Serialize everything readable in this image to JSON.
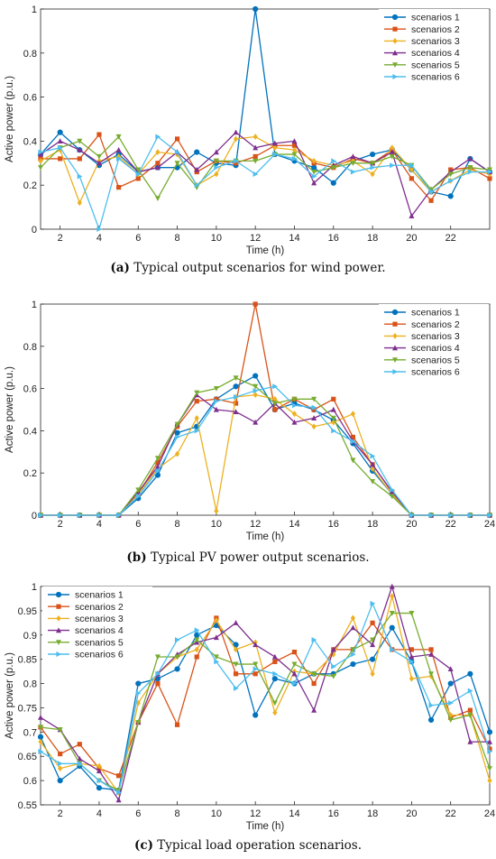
{
  "chart_data": [
    {
      "type": "line",
      "caption_tag": "(a)",
      "caption_text": "Typical output scenarios for wind power.",
      "xlabel": "Time (h)",
      "ylabel": "Active power (p.u.)",
      "xlim": [
        1,
        24
      ],
      "ylim": [
        0,
        1
      ],
      "xticks": [
        2,
        4,
        6,
        8,
        10,
        12,
        14,
        16,
        18,
        20,
        22
      ],
      "yticks": [
        0,
        0.2,
        0.4,
        0.6,
        0.8,
        1
      ],
      "legend_position": "top-right",
      "x": [
        1,
        2,
        3,
        4,
        5,
        6,
        7,
        8,
        9,
        10,
        11,
        12,
        13,
        14,
        15,
        16,
        17,
        18,
        19,
        20,
        21,
        22,
        23,
        24
      ],
      "series": [
        {
          "name": "scenarios 1",
          "color": "#0072BD",
          "marker": "circle",
          "values": [
            0.34,
            0.44,
            0.36,
            0.29,
            0.34,
            0.26,
            0.28,
            0.28,
            0.35,
            0.3,
            0.29,
            1.0,
            0.34,
            0.31,
            0.28,
            0.21,
            0.31,
            0.34,
            0.36,
            0.27,
            0.17,
            0.15,
            0.32,
            0.26
          ]
        },
        {
          "name": "scenarios 2",
          "color": "#D95319",
          "marker": "square",
          "values": [
            0.32,
            0.32,
            0.32,
            0.43,
            0.19,
            0.23,
            0.3,
            0.41,
            0.26,
            0.31,
            0.3,
            0.33,
            0.38,
            0.38,
            0.3,
            0.28,
            0.32,
            0.3,
            0.36,
            0.23,
            0.13,
            0.27,
            0.28,
            0.23
          ]
        },
        {
          "name": "scenarios 3",
          "color": "#EDB120",
          "marker": "diamond",
          "values": [
            0.31,
            0.36,
            0.12,
            0.31,
            0.33,
            0.25,
            0.35,
            0.34,
            0.2,
            0.25,
            0.41,
            0.42,
            0.37,
            0.36,
            0.31,
            0.29,
            0.31,
            0.25,
            0.37,
            0.27,
            0.17,
            0.22,
            0.27,
            0.25
          ]
        },
        {
          "name": "scenarios 4",
          "color": "#7E2F8E",
          "marker": "triangle-up",
          "values": [
            0.34,
            0.4,
            0.36,
            0.3,
            0.36,
            0.26,
            0.28,
            0.35,
            0.27,
            0.35,
            0.44,
            0.37,
            0.39,
            0.4,
            0.21,
            0.29,
            0.33,
            0.3,
            0.35,
            0.06,
            0.18,
            0.26,
            0.32,
            0.26
          ]
        },
        {
          "name": "scenarios 5",
          "color": "#77AC30",
          "marker": "triangle-down",
          "values": [
            0.28,
            0.37,
            0.4,
            0.33,
            0.42,
            0.27,
            0.14,
            0.3,
            0.19,
            0.31,
            0.31,
            0.31,
            0.34,
            0.34,
            0.26,
            0.28,
            0.3,
            0.3,
            0.33,
            0.29,
            0.18,
            0.25,
            0.28,
            0.27
          ]
        },
        {
          "name": "scenarios 6",
          "color": "#4DBEEE",
          "marker": "triangle-right",
          "values": [
            0.35,
            0.37,
            0.24,
            0.0,
            0.32,
            0.25,
            0.42,
            0.35,
            0.2,
            0.28,
            0.31,
            0.25,
            0.34,
            0.32,
            0.24,
            0.31,
            0.26,
            0.28,
            0.29,
            0.29,
            0.17,
            0.22,
            0.26,
            0.26
          ]
        }
      ]
    },
    {
      "type": "line",
      "caption_tag": "(b)",
      "caption_text": "Typical PV power output scenarios.",
      "xlabel": "Time (h)",
      "ylabel": "Active power (p.u.)",
      "xlim": [
        1,
        24
      ],
      "ylim": [
        0,
        1
      ],
      "xticks": [
        2,
        4,
        6,
        8,
        10,
        12,
        14,
        16,
        18,
        20,
        22,
        24
      ],
      "yticks": [
        0,
        0.2,
        0.4,
        0.6,
        0.8,
        1
      ],
      "legend_position": "top-right",
      "x": [
        1,
        2,
        3,
        4,
        5,
        6,
        7,
        8,
        9,
        10,
        11,
        12,
        13,
        14,
        15,
        16,
        17,
        18,
        19,
        20,
        21,
        22,
        23,
        24
      ],
      "series": [
        {
          "name": "scenarios 1",
          "color": "#0072BD",
          "marker": "circle",
          "values": [
            0,
            0,
            0,
            0,
            0,
            0.08,
            0.19,
            0.39,
            0.42,
            0.55,
            0.61,
            0.66,
            0.5,
            0.53,
            0.5,
            0.45,
            0.34,
            0.21,
            0.1,
            0,
            0,
            0,
            0,
            0
          ]
        },
        {
          "name": "scenarios 2",
          "color": "#D95319",
          "marker": "square",
          "values": [
            0,
            0,
            0,
            0,
            0,
            0.1,
            0.25,
            0.42,
            0.54,
            0.55,
            0.53,
            1.0,
            0.5,
            0.55,
            0.5,
            0.55,
            0.37,
            0.24,
            0.11,
            0,
            0,
            0,
            0,
            0
          ]
        },
        {
          "name": "scenarios 3",
          "color": "#EDB120",
          "marker": "diamond",
          "values": [
            0,
            0,
            0,
            0,
            0,
            0.1,
            0.22,
            0.29,
            0.46,
            0.02,
            0.56,
            0.57,
            0.55,
            0.48,
            0.42,
            0.44,
            0.48,
            0.22,
            0.1,
            0,
            0,
            0,
            0,
            0
          ]
        },
        {
          "name": "scenarios 4",
          "color": "#7E2F8E",
          "marker": "triangle-up",
          "values": [
            0,
            0,
            0,
            0,
            0,
            0.11,
            0.23,
            0.43,
            0.57,
            0.5,
            0.49,
            0.44,
            0.53,
            0.44,
            0.46,
            0.5,
            0.35,
            0.24,
            0.11,
            0,
            0,
            0,
            0,
            0
          ]
        },
        {
          "name": "scenarios 5",
          "color": "#77AC30",
          "marker": "triangle-down",
          "values": [
            0,
            0,
            0,
            0,
            0,
            0.12,
            0.27,
            0.43,
            0.58,
            0.6,
            0.65,
            0.61,
            0.53,
            0.55,
            0.55,
            0.46,
            0.26,
            0.16,
            0.09,
            0,
            0,
            0,
            0,
            0
          ]
        },
        {
          "name": "scenarios 6",
          "color": "#4DBEEE",
          "marker": "triangle-right",
          "values": [
            0,
            0,
            0,
            0,
            0,
            0.09,
            0.21,
            0.37,
            0.4,
            0.54,
            0.56,
            0.59,
            0.61,
            0.52,
            0.51,
            0.4,
            0.35,
            0.28,
            0.12,
            0,
            0,
            0,
            0,
            0
          ]
        }
      ]
    },
    {
      "type": "line",
      "caption_tag": "(c)",
      "caption_text": "Typical load operation scenarios.",
      "xlabel": "Time (h)",
      "ylabel": "Active power (p.u.)",
      "xlim": [
        1,
        24
      ],
      "ylim": [
        0.55,
        1
      ],
      "xticks": [
        2,
        4,
        6,
        8,
        10,
        12,
        14,
        16,
        18,
        20,
        22,
        24
      ],
      "yticks": [
        0.55,
        0.6,
        0.65,
        0.7,
        0.75,
        0.8,
        0.85,
        0.9,
        0.95,
        1
      ],
      "legend_position": "top-left",
      "x": [
        1,
        2,
        3,
        4,
        5,
        6,
        7,
        8,
        9,
        10,
        11,
        12,
        13,
        14,
        15,
        16,
        17,
        18,
        19,
        20,
        21,
        22,
        23,
        24
      ],
      "series": [
        {
          "name": "scenarios 1",
          "color": "#0072BD",
          "marker": "circle",
          "values": [
            0.69,
            0.6,
            0.63,
            0.585,
            0.58,
            0.8,
            0.81,
            0.83,
            0.9,
            0.92,
            0.88,
            0.735,
            0.81,
            0.8,
            0.82,
            0.82,
            0.84,
            0.85,
            0.915,
            0.845,
            0.725,
            0.8,
            0.82,
            0.7
          ]
        },
        {
          "name": "scenarios 2",
          "color": "#D95319",
          "marker": "square",
          "values": [
            0.71,
            0.655,
            0.675,
            0.625,
            0.61,
            0.72,
            0.8,
            0.715,
            0.855,
            0.935,
            0.82,
            0.82,
            0.845,
            0.865,
            0.8,
            0.87,
            0.87,
            0.925,
            0.87,
            0.87,
            0.87,
            0.73,
            0.745,
            0.665
          ]
        },
        {
          "name": "scenarios 3",
          "color": "#EDB120",
          "marker": "diamond",
          "values": [
            0.68,
            0.625,
            0.635,
            0.63,
            0.575,
            0.76,
            0.82,
            0.855,
            0.87,
            0.93,
            0.87,
            0.885,
            0.74,
            0.825,
            0.82,
            0.86,
            0.935,
            0.82,
            0.98,
            0.81,
            0.815,
            0.735,
            0.735,
            0.6
          ]
        },
        {
          "name": "scenarios 4",
          "color": "#7E2F8E",
          "marker": "triangle-up",
          "values": [
            0.73,
            0.705,
            0.645,
            0.62,
            0.56,
            0.72,
            0.82,
            0.86,
            0.885,
            0.895,
            0.925,
            0.88,
            0.855,
            0.82,
            0.745,
            0.87,
            0.915,
            0.88,
            1.0,
            0.855,
            0.86,
            0.83,
            0.68,
            0.68
          ]
        },
        {
          "name": "scenarios 5",
          "color": "#77AC30",
          "marker": "triangle-down",
          "values": [
            0.71,
            0.705,
            0.635,
            0.6,
            0.58,
            0.72,
            0.855,
            0.855,
            0.89,
            0.855,
            0.84,
            0.84,
            0.76,
            0.84,
            0.82,
            0.815,
            0.87,
            0.89,
            0.945,
            0.945,
            0.82,
            0.725,
            0.735,
            0.625
          ]
        },
        {
          "name": "scenarios 6",
          "color": "#4DBEEE",
          "marker": "triangle-right",
          "values": [
            0.66,
            0.635,
            0.635,
            0.6,
            0.575,
            0.78,
            0.82,
            0.89,
            0.91,
            0.845,
            0.79,
            0.83,
            0.82,
            0.8,
            0.89,
            0.835,
            0.86,
            0.965,
            0.87,
            0.845,
            0.755,
            0.76,
            0.785,
            0.66
          ]
        }
      ]
    }
  ]
}
